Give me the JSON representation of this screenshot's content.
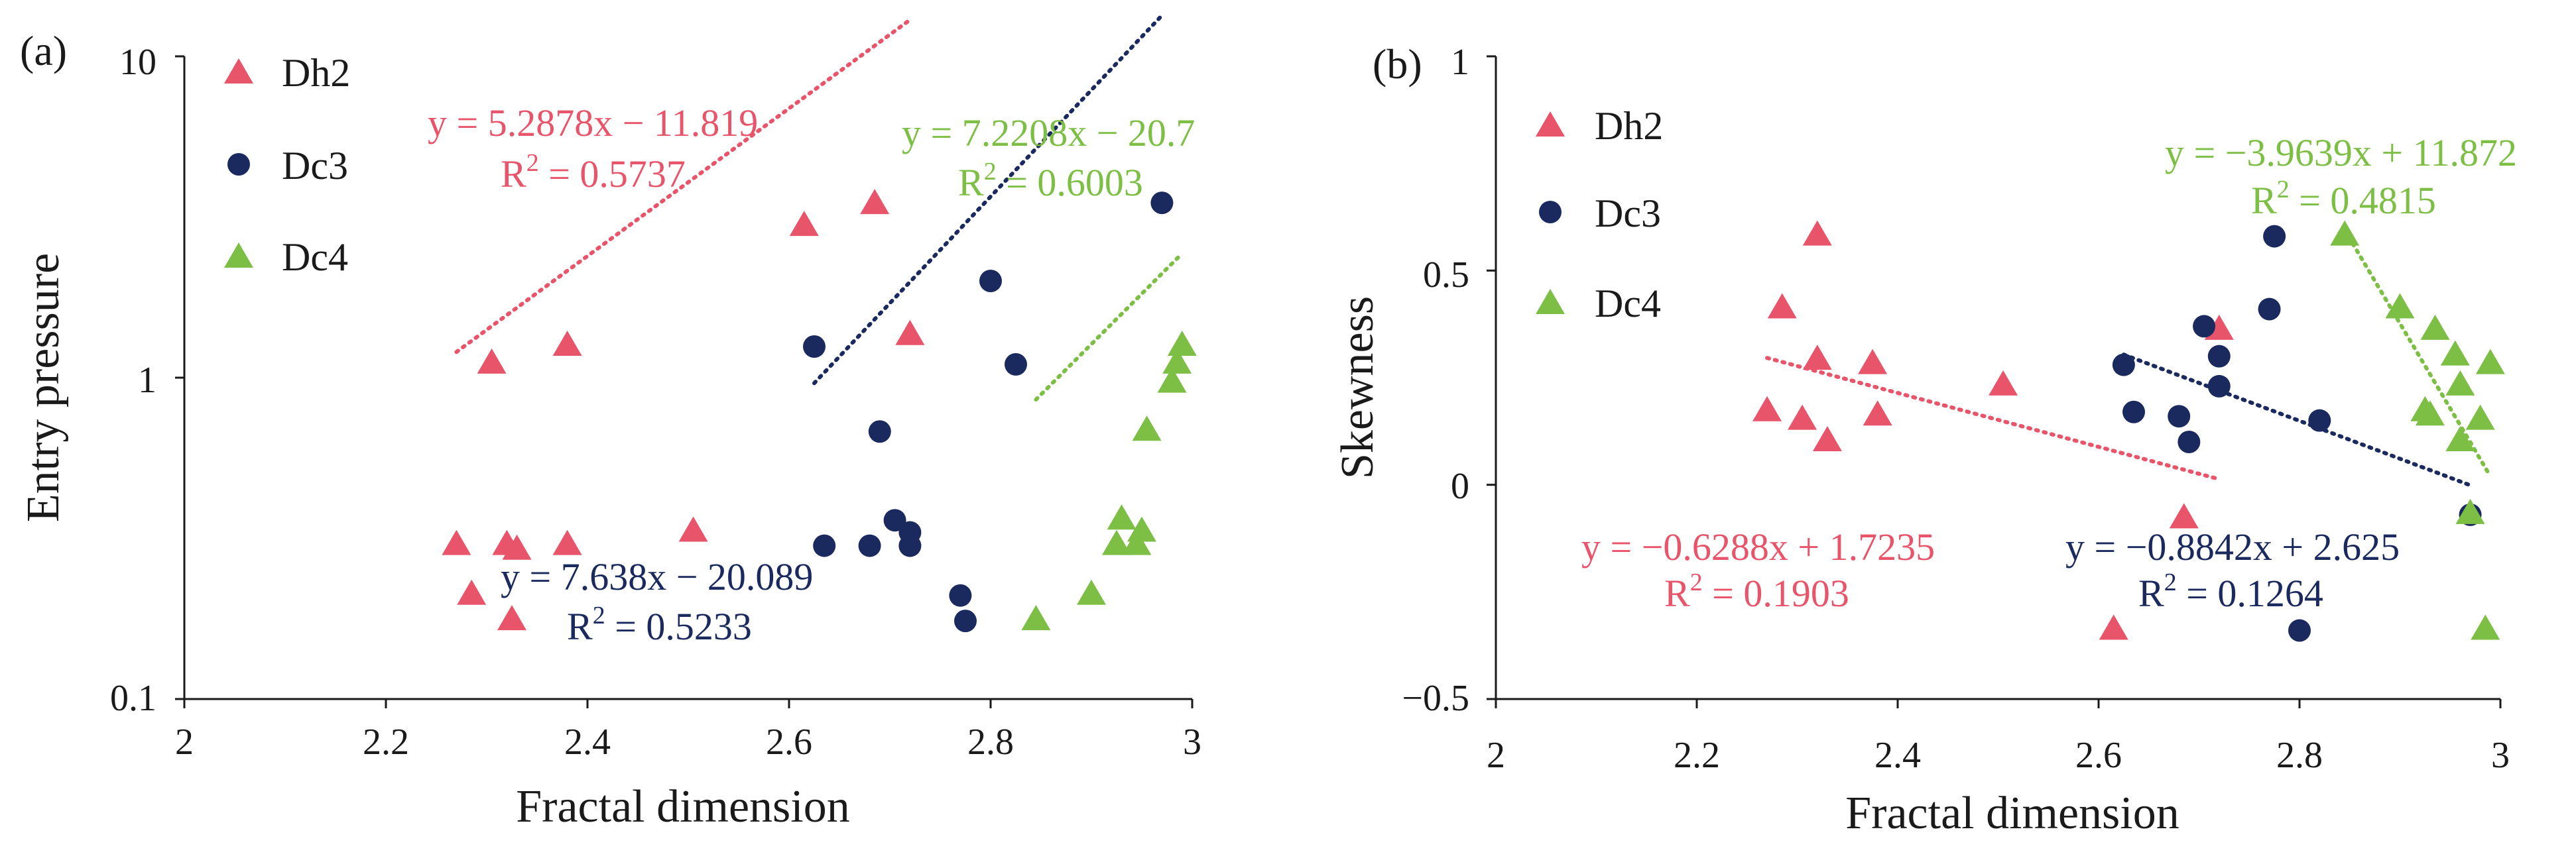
{
  "colors": {
    "Dh2": "#E8546A",
    "Dc3": "#1B2A5E",
    "Dc4": "#7DBF45",
    "axis": "#1a1a1a"
  },
  "chart_data": [
    {
      "panel": "(a)",
      "type": "scatter",
      "xlabel": "Fractal dimension",
      "ylabel": "Entry pressure",
      "xlim": [
        2,
        3
      ],
      "ylim": [
        0.1,
        10
      ],
      "yscale": "log",
      "xticks": [
        "2",
        "2.2",
        "2.4",
        "2.6",
        "2.8",
        "3"
      ],
      "yticks": [
        "0.1",
        "1",
        "10"
      ],
      "legend": [
        {
          "name": "Dh2",
          "marker": "triangle"
        },
        {
          "name": "Dc3",
          "marker": "circle"
        },
        {
          "name": "Dc4",
          "marker": "triangle"
        }
      ],
      "series": [
        {
          "name": "Dh2",
          "marker": "triangle",
          "points": [
            [
              2.27,
              0.3
            ],
            [
              2.285,
              0.21
            ],
            [
              2.305,
              1.1
            ],
            [
              2.32,
              0.3
            ],
            [
              2.325,
              0.175
            ],
            [
              2.33,
              0.29
            ],
            [
              2.38,
              1.25
            ],
            [
              2.38,
              0.3
            ],
            [
              2.505,
              0.33
            ],
            [
              2.615,
              2.95
            ],
            [
              2.685,
              3.45
            ],
            [
              2.72,
              1.35
            ]
          ],
          "trend": {
            "kind": "exponential",
            "a": 5.2878,
            "b": -11.819,
            "from": 2.27,
            "to": 2.72
          },
          "equation": "y = 5.2878x − 11.819",
          "r2_text": "R",
          "r2_value": " = 0.5737"
        },
        {
          "name": "Dc3",
          "marker": "circle",
          "points": [
            [
              2.625,
              1.25
            ],
            [
              2.635,
              0.3
            ],
            [
              2.68,
              0.3
            ],
            [
              2.69,
              0.68
            ],
            [
              2.705,
              0.36
            ],
            [
              2.72,
              0.33
            ],
            [
              2.72,
              0.3
            ],
            [
              2.77,
              0.21
            ],
            [
              2.775,
              0.175
            ],
            [
              2.8,
              2.0
            ],
            [
              2.825,
              1.1
            ],
            [
              2.97,
              3.5
            ]
          ],
          "trend": {
            "kind": "exponential",
            "a": 7.638,
            "b": -20.089,
            "from": 2.625,
            "to": 2.97
          },
          "equation": "y = 7.638x − 20.089",
          "r2_text": "R",
          "r2_value": " = 0.5233"
        },
        {
          "name": "Dc4",
          "marker": "triangle",
          "points": [
            [
              2.845,
              0.175
            ],
            [
              2.9,
              0.21
            ],
            [
              2.925,
              0.3
            ],
            [
              2.93,
              0.36
            ],
            [
              2.945,
              0.3
            ],
            [
              2.95,
              0.33
            ],
            [
              2.955,
              0.68
            ],
            [
              2.98,
              0.96
            ],
            [
              2.985,
              1.1
            ],
            [
              2.99,
              1.25
            ]
          ],
          "trend": {
            "kind": "exponential",
            "a": 7.2208,
            "b": -20.7,
            "from": 2.845,
            "to": 2.99
          },
          "equation": "y = 7.2208x − 20.7",
          "r2_text": "R",
          "r2_value": " = 0.6003"
        }
      ]
    },
    {
      "panel": "(b)",
      "type": "scatter",
      "xlabel": "Fractal dimension",
      "ylabel": "Skewness",
      "xlim": [
        2,
        3
      ],
      "ylim": [
        -0.5,
        1
      ],
      "yscale": "linear",
      "xticks": [
        "2",
        "2.2",
        "2.4",
        "2.6",
        "2.8",
        "3"
      ],
      "yticks": [
        "−0.5",
        "0",
        "0.5",
        "1"
      ],
      "legend": [
        {
          "name": "Dh2",
          "marker": "triangle"
        },
        {
          "name": "Dc3",
          "marker": "circle"
        },
        {
          "name": "Dc4",
          "marker": "triangle"
        }
      ],
      "series": [
        {
          "name": "Dh2",
          "marker": "triangle",
          "points": [
            [
              2.27,
              0.17
            ],
            [
              2.285,
              0.41
            ],
            [
              2.305,
              0.15
            ],
            [
              2.32,
              0.58
            ],
            [
              2.32,
              0.29
            ],
            [
              2.33,
              0.1
            ],
            [
              2.375,
              0.28
            ],
            [
              2.38,
              0.16
            ],
            [
              2.505,
              0.23
            ],
            [
              2.615,
              -0.34
            ],
            [
              2.685,
              -0.08
            ],
            [
              2.72,
              0.36
            ]
          ],
          "trend": {
            "kind": "linear",
            "a": -0.6288,
            "b": 1.7235,
            "from": 2.27,
            "to": 2.72
          },
          "equation": "y = −0.6288x + 1.7235",
          "r2_text": "R",
          "r2_value": " = 0.1903"
        },
        {
          "name": "Dc3",
          "marker": "circle",
          "points": [
            [
              2.625,
              0.28
            ],
            [
              2.635,
              0.17
            ],
            [
              2.68,
              0.16
            ],
            [
              2.69,
              0.1
            ],
            [
              2.705,
              0.37
            ],
            [
              2.72,
              0.3
            ],
            [
              2.72,
              0.23
            ],
            [
              2.77,
              0.41
            ],
            [
              2.775,
              0.58
            ],
            [
              2.8,
              -0.34
            ],
            [
              2.82,
              0.15
            ],
            [
              2.97,
              -0.07
            ]
          ],
          "trend": {
            "kind": "linear",
            "a": -0.8842,
            "b": 2.625,
            "from": 2.625,
            "to": 2.97
          },
          "equation": "y = −0.8842x + 2.625",
          "r2_text": "R",
          "r2_value": " = 0.1264"
        },
        {
          "name": "Dc4",
          "marker": "triangle",
          "points": [
            [
              2.845,
              0.58
            ],
            [
              2.9,
              0.41
            ],
            [
              2.925,
              0.17
            ],
            [
              2.93,
              0.16
            ],
            [
              2.935,
              0.36
            ],
            [
              2.955,
              0.3
            ],
            [
              2.96,
              0.23
            ],
            [
              2.96,
              0.1
            ],
            [
              2.97,
              -0.07
            ],
            [
              2.98,
              0.15
            ],
            [
              2.985,
              -0.34
            ],
            [
              2.99,
              0.28
            ]
          ],
          "trend": {
            "kind": "linear",
            "a": -3.9639,
            "b": 11.872,
            "from": 2.845,
            "to": 2.99
          },
          "equation": "y = −3.9639x + 11.872",
          "r2_text": "R",
          "r2_value": " = 0.4815"
        }
      ]
    }
  ]
}
